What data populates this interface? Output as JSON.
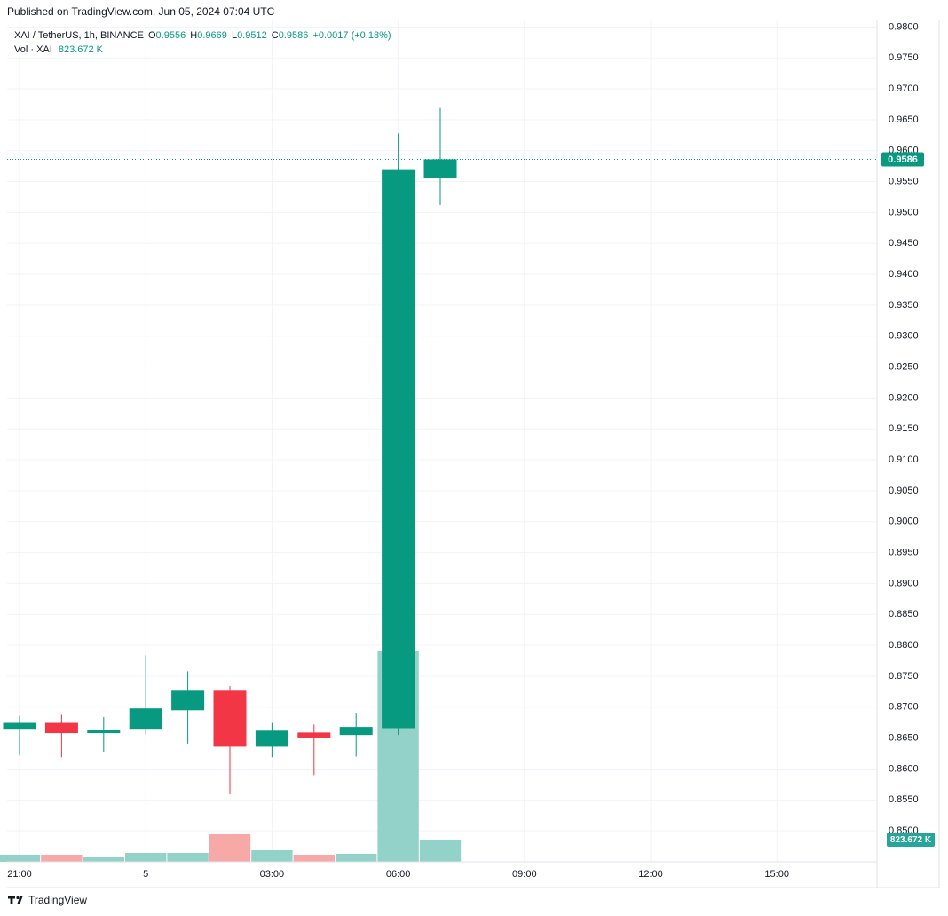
{
  "header": {
    "published": "Published on TradingView.com, Jun 05, 2024 07:04 UTC"
  },
  "footer": {
    "brand": "TradingView"
  },
  "chart_data": {
    "type": "candlestick",
    "title": "XAI / TetherUS, 1h, BINANCE",
    "legend": {
      "open": "O",
      "high": "H",
      "low": "L",
      "close": "C",
      "change": "+0.0017 (+0.18%)"
    },
    "categories": [
      "21:00",
      null,
      null,
      "5",
      null,
      null,
      "03:00",
      null,
      null,
      "06:00",
      null,
      null,
      "09:00",
      null,
      null,
      "12:00",
      null,
      null,
      "15:00",
      null,
      null
    ],
    "open": [
      0.8665,
      0.8676,
      0.8658,
      0.8665,
      0.8695,
      0.8728,
      0.8636,
      0.8659,
      0.8655,
      0.8666,
      0.9556,
      null,
      null,
      null,
      null,
      null,
      null,
      null,
      null,
      null,
      null
    ],
    "high": [
      0.8686,
      0.8689,
      0.8684,
      0.8784,
      0.8758,
      0.8734,
      0.8676,
      0.8672,
      0.8691,
      0.9628,
      0.9669,
      null,
      null,
      null,
      null,
      null,
      null,
      null,
      null,
      null,
      null
    ],
    "low": [
      0.8622,
      0.8619,
      0.8628,
      0.8656,
      0.8641,
      0.856,
      0.8619,
      0.859,
      0.862,
      0.8655,
      0.9512,
      null,
      null,
      null,
      null,
      null,
      null,
      null,
      null,
      null,
      null
    ],
    "close": [
      0.8676,
      0.8658,
      0.8663,
      0.8698,
      0.8728,
      0.8636,
      0.8662,
      0.8651,
      0.8668,
      0.957,
      0.9586,
      null,
      null,
      null,
      null,
      null,
      null,
      null,
      null,
      null,
      null
    ],
    "volume": {
      "name": "Vol · XAI",
      "values": [
        263,
        263,
        197,
        329,
        329,
        1020,
        428,
        263,
        296,
        7800,
        823.672,
        null,
        null,
        null,
        null,
        null,
        null,
        null,
        null,
        null,
        null
      ],
      "value_labels": [
        null,
        null,
        null,
        null,
        null,
        null,
        null,
        null,
        null,
        null,
        "823.672 K",
        null,
        null,
        null,
        null,
        null,
        null,
        null,
        null,
        null,
        null
      ]
    },
    "up_color": "#089981",
    "down_color": "#f23645",
    "volume_up_color": "#92d2c9",
    "volume_down_color": "#f7a9a7",
    "volume_label_color": "#26a69a",
    "ylim": [
      0.845,
      0.9812
    ],
    "yticks": [
      {
        "value": 0.98,
        "label": "0.9800"
      },
      {
        "value": 0.975,
        "label": "0.9750"
      },
      {
        "value": 0.97,
        "label": "0.9700"
      },
      {
        "value": 0.965,
        "label": "0.9650"
      },
      {
        "value": 0.96,
        "label": "0.9600"
      },
      {
        "value": 0.955,
        "label": "0.9550"
      },
      {
        "value": 0.95,
        "label": "0.9500"
      },
      {
        "value": 0.945,
        "label": "0.9450"
      },
      {
        "value": 0.94,
        "label": "0.9400"
      },
      {
        "value": 0.935,
        "label": "0.9350"
      },
      {
        "value": 0.93,
        "label": "0.9300"
      },
      {
        "value": 0.925,
        "label": "0.9250"
      },
      {
        "value": 0.92,
        "label": "0.9200"
      },
      {
        "value": 0.915,
        "label": "0.9150"
      },
      {
        "value": 0.91,
        "label": "0.9100"
      },
      {
        "value": 0.905,
        "label": "0.9050"
      },
      {
        "value": 0.9,
        "label": "0.9000"
      },
      {
        "value": 0.895,
        "label": "0.8950"
      },
      {
        "value": 0.89,
        "label": "0.8900"
      },
      {
        "value": 0.885,
        "label": "0.8850"
      },
      {
        "value": 0.88,
        "label": "0.8800"
      },
      {
        "value": 0.875,
        "label": "0.8750"
      },
      {
        "value": 0.87,
        "label": "0.8700"
      },
      {
        "value": 0.865,
        "label": "0.8650"
      },
      {
        "value": 0.86,
        "label": "0.8600"
      },
      {
        "value": 0.855,
        "label": "0.8550"
      },
      {
        "value": 0.85,
        "label": "0.8500"
      }
    ],
    "grid": true
  }
}
